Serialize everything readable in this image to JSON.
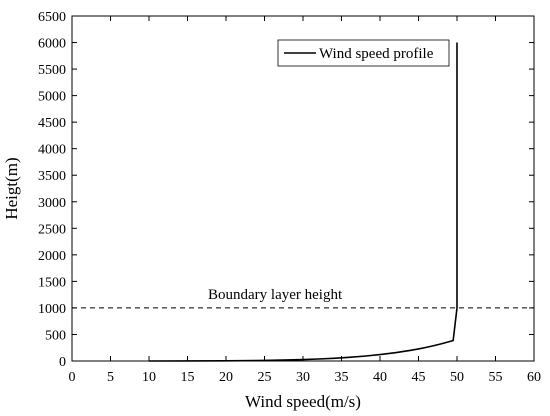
{
  "chart_data": {
    "type": "line",
    "xlabel": "Wind speed(m/s)",
    "ylabel": "Heigt(m)",
    "xlim": [
      0,
      60
    ],
    "ylim": [
      0,
      6500
    ],
    "xticks": [
      0,
      5,
      10,
      15,
      20,
      25,
      30,
      35,
      40,
      45,
      50,
      55,
      60
    ],
    "yticks": [
      0,
      500,
      1000,
      1500,
      2000,
      2500,
      3000,
      3500,
      4000,
      4500,
      5000,
      5500,
      6000,
      6500
    ],
    "grid": false,
    "legend": {
      "position": "top-right",
      "entries": [
        "Wind speed profile"
      ]
    },
    "series": [
      {
        "name": "Wind speed profile",
        "color": "#000000",
        "points": [
          [
            10,
            0
          ],
          [
            15,
            0.7
          ],
          [
            20,
            3.3
          ],
          [
            25,
            10.8
          ],
          [
            28,
            19.2
          ],
          [
            30,
            27.1
          ],
          [
            32,
            37.5
          ],
          [
            34,
            51.3
          ],
          [
            36,
            69.1
          ],
          [
            38,
            91.9
          ],
          [
            40,
            120.8
          ],
          [
            42,
            156.9
          ],
          [
            44,
            201.6
          ],
          [
            45,
            227.8
          ],
          [
            46,
            256.9
          ],
          [
            47,
            289.2
          ],
          [
            48,
            324.9
          ],
          [
            49,
            364.3
          ],
          [
            49.5,
            385.4
          ],
          [
            50,
            1000
          ],
          [
            50,
            6000
          ]
        ]
      }
    ],
    "annotations": [
      {
        "text": "Boundary layer height",
        "type": "hline",
        "y": 1000,
        "style": "dashed"
      }
    ]
  }
}
